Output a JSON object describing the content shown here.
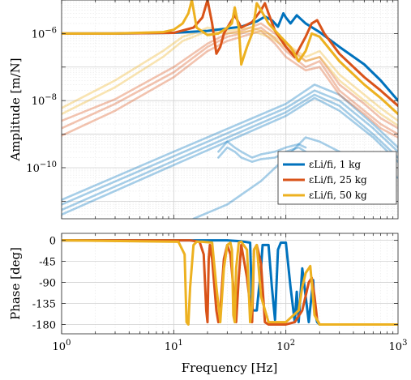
{
  "chart_data": [
    {
      "type": "line",
      "panel": "amplitude",
      "ylabel": "Amplitude [m/N]",
      "xscale": "log",
      "yscale": "log",
      "xlim": [
        1,
        1000
      ],
      "ylim": [
        3e-12,
        1e-05
      ],
      "ytick_labels": [
        "10^-6",
        "10^-8",
        "10^-10"
      ],
      "grid": true,
      "legend_position": "bottom-right",
      "legend": [
        "εLi/fi, 1 kg",
        "εLi/fi, 25 kg",
        "εLi/fi, 50 kg"
      ],
      "series": [
        {
          "name": "εLi/fi, 1 kg",
          "color": "#0072BD",
          "x": [
            1,
            3,
            10,
            20,
            40,
            55,
            65,
            75,
            85,
            95,
            100,
            110,
            125,
            150,
            200,
            300,
            500,
            700,
            1000
          ],
          "y": [
            1e-06,
            1e-06,
            1.05e-06,
            1.2e-06,
            1.6e-06,
            2.3e-06,
            3.2e-06,
            2.5e-06,
            1.6e-06,
            4e-06,
            3e-06,
            2e-06,
            3.5e-06,
            2e-06,
            1.1e-06,
            4e-07,
            1.2e-07,
            4e-08,
            1e-08
          ]
        },
        {
          "name": "εLi/fi, 25 kg",
          "color": "#D95319",
          "x": [
            1,
            3,
            10,
            15,
            18,
            20,
            22,
            24,
            26,
            28,
            30,
            35,
            40,
            50,
            60,
            65,
            70,
            80,
            100,
            120,
            150,
            170,
            190,
            220,
            300,
            500,
            700,
            1000
          ],
          "y": [
            1e-06,
            1e-06,
            1.05e-06,
            1.5e-06,
            3e-06,
            1e-05,
            2e-06,
            2.5e-07,
            4e-07,
            1e-06,
            1.5e-06,
            3.5e-06,
            1.5e-06,
            2.2e-06,
            5e-06,
            8e-06,
            4e-06,
            1.2e-06,
            4e-07,
            2e-07,
            8e-07,
            2e-06,
            2.5e-06,
            1e-06,
            2.5e-07,
            5e-08,
            2e-08,
            7e-09
          ]
        },
        {
          "name": "εLi/fi, 50 kg",
          "color": "#EDB120",
          "x": [
            1,
            3,
            8,
            10,
            12,
            13.5,
            14.5,
            16,
            20,
            25,
            30,
            33,
            35,
            38,
            40,
            45,
            50,
            55,
            60,
            70,
            90,
            110,
            130,
            150,
            170,
            200,
            300,
            500,
            700,
            1000
          ],
          "y": [
            1e-06,
            1e-06,
            1.1e-06,
            1.3e-06,
            2e-06,
            4e-06,
            1e-05,
            1.5e-06,
            9e-07,
            1e-06,
            1.5e-06,
            2e-06,
            6e-06,
            1.5e-06,
            1.2e-07,
            4e-07,
            1e-06,
            8e-06,
            5e-06,
            2e-06,
            8e-07,
            4e-07,
            1.5e-07,
            3e-07,
            1e-06,
            8e-07,
            1.5e-07,
            3e-08,
            1.2e-08,
            4e-09
          ]
        }
      ],
      "faint_series": [
        {
          "color": "#0072BD",
          "curves": [
            {
              "x": [
                1,
                10,
                100,
                180,
                300,
                600,
                1000
              ],
              "y": [
                1.1e-11,
                3e-10,
                8e-09,
                3e-08,
                1.5e-08,
                2e-09,
                4e-10
              ]
            },
            {
              "x": [
                1,
                10,
                100,
                180,
                300,
                600,
                1000
              ],
              "y": [
                8e-12,
                2.2e-10,
                6e-09,
                2e-08,
                1e-08,
                1.5e-09,
                3e-10
              ]
            },
            {
              "x": [
                1,
                10,
                100,
                180,
                300,
                600,
                1000
              ],
              "y": [
                5.5e-12,
                1.6e-10,
                4.5e-09,
                1.5e-08,
                7e-09,
                1e-09,
                2e-10
              ]
            },
            {
              "x": [
                1,
                10,
                100,
                180,
                300,
                600,
                1000
              ],
              "y": [
                4e-12,
                1.2e-10,
                3.5e-09,
                1.2e-08,
                5e-09,
                8e-10,
                1.5e-10
              ]
            },
            {
              "x": [
                25,
                30,
                35,
                40,
                50,
                60,
                80,
                100,
                130,
                150
              ],
              "y": [
                3e-10,
                6e-10,
                4e-10,
                3e-10,
                2e-10,
                2.5e-10,
                3e-10,
                4e-10,
                5e-10,
                4e-10
              ]
            },
            {
              "x": [
                25,
                30,
                35,
                40,
                50,
                60,
                80,
                100,
                130,
                150
              ],
              "y": [
                2e-10,
                4e-10,
                3e-10,
                2e-10,
                1.5e-10,
                1.8e-10,
                2e-10,
                3e-10,
                4e-10,
                3e-10
              ]
            },
            {
              "x": [
                15,
                30,
                60,
                100,
                150,
                200,
                300,
                600,
                1000
              ],
              "y": [
                3e-12,
                8e-12,
                4e-11,
                2e-10,
                8e-10,
                6e-10,
                3e-10,
                1e-10,
                5e-11
              ]
            }
          ]
        },
        {
          "color": "#D95319",
          "curves": [
            {
              "x": [
                1,
                3,
                10,
                20,
                30,
                40,
                60,
                80,
                100,
                150,
                200,
                300,
                500,
                700,
                1000
              ],
              "y": [
                2.5e-09,
                1.1e-08,
                1e-07,
                5e-07,
                1e-06,
                1.2e-06,
                2e-06,
                1e-06,
                5e-07,
                1.5e-07,
                2e-07,
                3e-08,
                8e-09,
                3e-09,
                1.5e-09
              ]
            },
            {
              "x": [
                1,
                3,
                10,
                20,
                30,
                40,
                60,
                80,
                100,
                150,
                200,
                300,
                500,
                700,
                1000
              ],
              "y": [
                1.5e-09,
                8e-09,
                7e-08,
                4e-07,
                8e-07,
                1e-06,
                1.5e-06,
                7e-07,
                3e-07,
                1e-07,
                1.5e-07,
                2e-08,
                5e-09,
                2e-09,
                1e-09
              ]
            },
            {
              "x": [
                1,
                3,
                10,
                20,
                30,
                40,
                60,
                80,
                100,
                150,
                200,
                300,
                500,
                700,
                1000
              ],
              "y": [
                9e-10,
                5e-09,
                5e-08,
                3e-07,
                6e-07,
                8e-07,
                1.2e-06,
                5e-07,
                2e-07,
                8e-08,
                1e-07,
                1.5e-08,
                4e-09,
                1.5e-09,
                8e-10
              ]
            }
          ]
        },
        {
          "color": "#EDB120",
          "curves": [
            {
              "x": [
                1,
                3,
                8,
                12,
                15,
                20,
                30,
                50,
                70,
                100,
                150,
                200,
                300,
                500,
                700,
                1000
              ],
              "y": [
                6e-09,
                4e-08,
                3e-07,
                8e-07,
                1e-06,
                1.5e-06,
                1.2e-06,
                1.5e-06,
                1e-06,
                5e-07,
                2e-07,
                3e-07,
                6e-08,
                1.5e-08,
                6e-09,
                2.5e-09
              ]
            },
            {
              "x": [
                1,
                3,
                8,
                12,
                15,
                20,
                30,
                50,
                70,
                100,
                150,
                200,
                300,
                500,
                700,
                1000
              ],
              "y": [
                4e-09,
                2.5e-08,
                2e-07,
                6e-07,
                8e-07,
                1.2e-06,
                1e-06,
                1.2e-06,
                8e-07,
                4e-07,
                1.5e-07,
                2e-07,
                4e-08,
                1e-08,
                4e-09,
                1.8e-09
              ]
            }
          ]
        }
      ]
    },
    {
      "type": "line",
      "panel": "phase",
      "xlabel": "Frequency [Hz]",
      "ylabel": "Phase [deg]",
      "xscale": "log",
      "xlim": [
        1,
        1000
      ],
      "ylim": [
        -200,
        15
      ],
      "xtick_labels": [
        "10^0",
        "10^1",
        "10^2",
        "10^3"
      ],
      "ytick_labels": [
        "0",
        "-45",
        "-90",
        "-135",
        "-180"
      ],
      "yticks": [
        0,
        -45,
        -90,
        -135,
        -180
      ],
      "grid": true,
      "series": [
        {
          "name": "1 kg",
          "color": "#0072BD",
          "x": [
            1,
            30,
            40,
            48,
            50,
            55,
            60,
            62,
            70,
            75,
            80,
            85,
            90,
            100,
            110,
            120,
            125,
            130,
            140,
            160,
            175,
            180,
            190,
            200,
            300,
            1000
          ],
          "y": [
            0,
            0,
            -2,
            -5,
            -150,
            -150,
            -60,
            -10,
            -10,
            -100,
            -170,
            -20,
            -5,
            -5,
            -100,
            -175,
            -110,
            -175,
            -60,
            -175,
            -85,
            -150,
            -175,
            -180,
            -180,
            -180
          ]
        },
        {
          "name": "25 kg",
          "color": "#D95319",
          "x": [
            1,
            14,
            17,
            18.5,
            19.5,
            20,
            20.5,
            21,
            22,
            24,
            25,
            26,
            28,
            30,
            32,
            34,
            36,
            38,
            40,
            45,
            50,
            52,
            55,
            60,
            65,
            70,
            80,
            100,
            120,
            140,
            160,
            170,
            180,
            190,
            200,
            300,
            1000
          ],
          "y": [
            0,
            0,
            -3,
            -30,
            -150,
            -175,
            -40,
            -10,
            -40,
            -150,
            -175,
            -150,
            -40,
            -10,
            -30,
            -100,
            -175,
            -80,
            -10,
            -80,
            -175,
            -20,
            -10,
            -50,
            -175,
            -180,
            -180,
            -180,
            -175,
            -150,
            -90,
            -80,
            -120,
            -170,
            -180,
            -180,
            -180
          ]
        },
        {
          "name": "50 kg",
          "color": "#EDB120",
          "x": [
            1,
            11,
            12.5,
            13,
            13.5,
            14,
            15,
            16,
            18,
            22,
            24,
            26,
            28,
            30,
            32,
            33,
            34,
            35,
            36,
            38,
            40,
            45,
            48,
            50,
            52,
            55,
            60,
            70,
            100,
            130,
            140,
            150,
            160,
            165,
            170,
            180,
            200,
            300,
            1000
          ],
          "y": [
            0,
            -3,
            -30,
            -175,
            -180,
            -100,
            -10,
            -3,
            -3,
            -5,
            -100,
            -175,
            -60,
            -10,
            -5,
            -20,
            -160,
            -175,
            -60,
            -5,
            -3,
            -20,
            -175,
            -140,
            -20,
            -10,
            -120,
            -175,
            -175,
            -150,
            -100,
            -70,
            -60,
            -55,
            -90,
            -160,
            -180,
            -180,
            -180
          ]
        }
      ]
    }
  ]
}
